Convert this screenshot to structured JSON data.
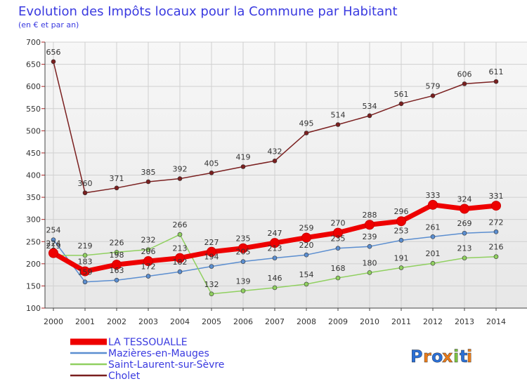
{
  "chart_data": {
    "type": "line",
    "title": "Evolution des Impôts locaux pour la Commune par Habitant",
    "subtitle": "(en € et par an)",
    "xlabel": "",
    "ylabel": "",
    "ylim": [
      100,
      700
    ],
    "yticks": [
      100,
      150,
      200,
      250,
      300,
      350,
      400,
      450,
      500,
      550,
      600,
      650,
      700
    ],
    "grid": true,
    "legend_position": "bottom-left",
    "x": [
      "2000",
      "2001",
      "2002",
      "2003",
      "2004",
      "2005",
      "2006",
      "2007",
      "2008",
      "2009",
      "2010",
      "2011",
      "2012",
      "2013",
      "2014"
    ],
    "series": [
      {
        "name": "Cholet",
        "color": "#7a1f1f",
        "values": [
          656,
          360,
          371,
          385,
          392,
          405,
          419,
          432,
          495,
          514,
          534,
          561,
          579,
          606,
          611
        ],
        "labels": [
          "656",
          "360",
          "371",
          "385",
          "392",
          "405",
          "419",
          "432",
          "495",
          "514",
          "534",
          "561",
          "579",
          "606",
          "611"
        ]
      },
      {
        "name": "Mazières-en-Mauges",
        "color": "#5b8ed0",
        "values": [
          254,
          159,
          163,
          172,
          182,
          194,
          205,
          213,
          220,
          235,
          239,
          253,
          261,
          269,
          272
        ],
        "labels": [
          "254",
          "159",
          "163",
          "172",
          "182",
          "194",
          "205",
          "213",
          "220",
          "235",
          "239",
          "253",
          "261",
          "269",
          "272"
        ]
      },
      {
        "name": "Saint-Laurent-sur-Sèvre",
        "color": "#90d060",
        "values": [
          219,
          219,
          226,
          232,
          266,
          132,
          139,
          146,
          154,
          168,
          180,
          191,
          201,
          213,
          216
        ],
        "labels": [
          "219",
          "219",
          "226",
          "232",
          "266",
          "132",
          "139",
          "146",
          "154",
          "168",
          "180",
          "191",
          "201",
          "213",
          "216"
        ]
      },
      {
        "name": "LA TESSOUALLE",
        "color": "#ee0000",
        "values": [
          224,
          183,
          198,
          206,
          213,
          227,
          235,
          247,
          259,
          270,
          288,
          296,
          333,
          324,
          331
        ],
        "labels": [
          "224",
          "183",
          "198",
          "206",
          "213",
          "227",
          "235",
          "247",
          "259",
          "270",
          "288",
          "296",
          "333",
          "324",
          "331"
        ]
      }
    ],
    "legend_order": [
      "LA TESSOUALLE",
      "Mazières-en-Mauges",
      "Saint-Laurent-sur-Sèvre",
      "Cholet"
    ]
  },
  "brand": {
    "letters": [
      "P",
      "r",
      "o",
      "x",
      "i",
      "t",
      "i"
    ],
    "colors": [
      "#2a6fd6",
      "#e87b1a",
      "#2a6fd6",
      "#e87b1a",
      "#7cc242",
      "#2a6fd6",
      "#e87b1a"
    ]
  },
  "theme": {
    "title_color": "#3a3ae0",
    "grid_color": "#d0d0d0",
    "axis_color": "#444444"
  }
}
